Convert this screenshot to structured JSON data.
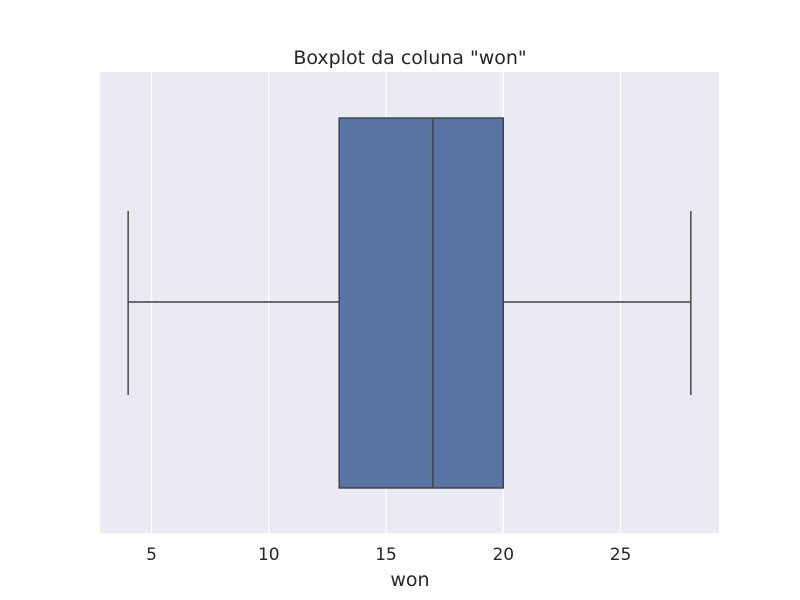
{
  "chart_data": {
    "type": "boxplot",
    "title": "Boxplot da coluna \"won\"",
    "xlabel": "won",
    "ylabel": "",
    "xlim": [
      2.8,
      29.2
    ],
    "xticks": [
      5,
      10,
      15,
      20,
      25
    ],
    "xtick_labels": [
      "5",
      "10",
      "15",
      "20",
      "25"
    ],
    "grid": true,
    "orientation": "horizontal",
    "box": {
      "whisker_low": 4,
      "q1": 13,
      "median": 17,
      "q3": 20,
      "whisker_high": 28
    },
    "colors": {
      "background": "#eaeaf2",
      "grid": "#ffffff",
      "box_fill": "#5875a4",
      "line": "#3f3f3f",
      "text": "#262626"
    }
  }
}
